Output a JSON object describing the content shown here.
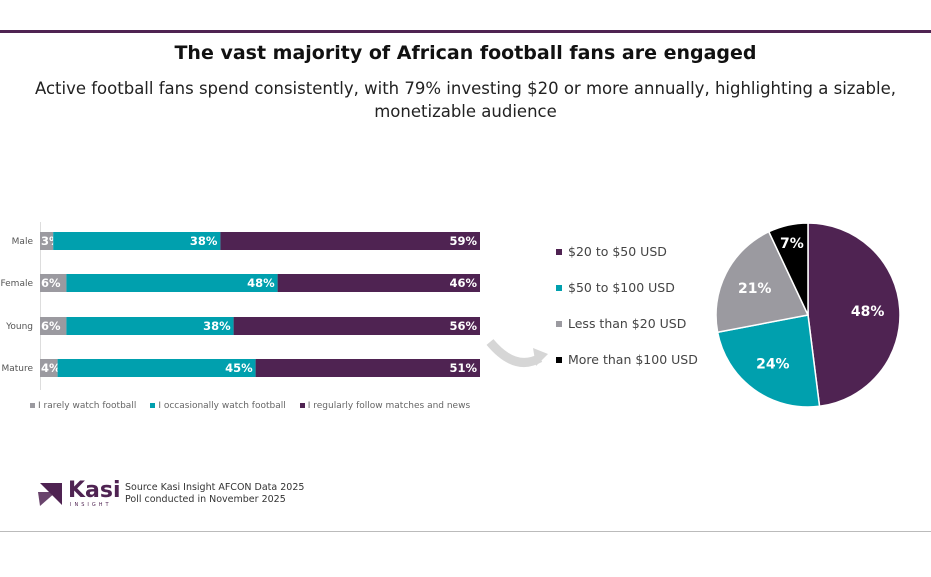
{
  "title": "The vast majority of African football fans are engaged",
  "subtitle": "Active football fans spend consistently, with 79% investing $20 or more annually, highlighting a sizable, monetizable audience",
  "colors": {
    "purple": "#4f2352",
    "teal": "#00a0ae",
    "gray": "#9b9aa0",
    "black": "#000000"
  },
  "chart_data": [
    {
      "type": "bar",
      "orientation": "horizontal",
      "stacked": true,
      "categories": [
        "Male",
        "Female",
        "Young",
        "Mature"
      ],
      "series": [
        {
          "name": "I rarely watch football",
          "values": [
            3,
            6,
            6,
            4
          ],
          "color": "#9b9aa0"
        },
        {
          "name": "I occasionally watch football",
          "values": [
            38,
            48,
            38,
            45
          ],
          "color": "#00a0ae"
        },
        {
          "name": "I regularly follow matches and news",
          "values": [
            59,
            46,
            56,
            51
          ],
          "color": "#4f2352"
        }
      ],
      "data_labels": true,
      "legend": "bottom",
      "grid": false
    },
    {
      "type": "pie",
      "slices": [
        {
          "label": "$20 to $50 USD",
          "value": 48,
          "color": "#4f2352"
        },
        {
          "label": "$50 to $100 USD",
          "value": 24,
          "color": "#00a0ae"
        },
        {
          "label": "Less than $20 USD",
          "value": 21,
          "color": "#9b9aa0"
        },
        {
          "label": "More than $100 USD",
          "value": 7,
          "color": "#000000"
        }
      ],
      "legend": "left"
    }
  ],
  "footer": {
    "logo": "Kasi INSIGHT",
    "source": "Source Kasi Insight AFCON Data 2025",
    "poll": "Poll conducted in November 2025"
  }
}
